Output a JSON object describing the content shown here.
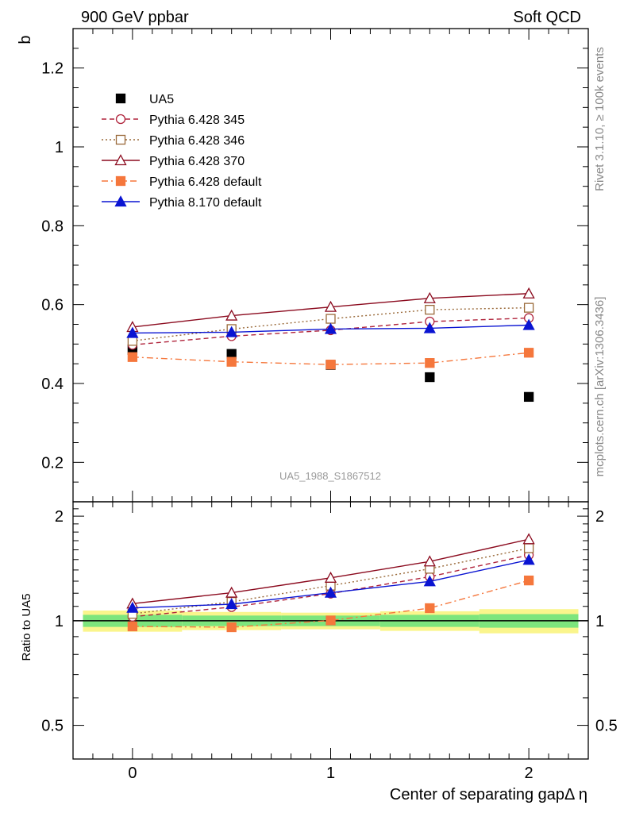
{
  "header": {
    "left": "900 GeV ppbar",
    "right": "Soft QCD"
  },
  "side_labels": {
    "rivet": "Rivet 3.1.10, ≥ 100k events",
    "mcplots": "mcplots.cern.ch [arXiv:1306.3436]"
  },
  "watermark": "UA5_1988_S1867512",
  "chart_data": [
    {
      "type": "scatter",
      "panel": "main",
      "ylabel": "b",
      "xlabel": "",
      "xlim": [
        -0.3,
        2.3
      ],
      "ylim": [
        0.1,
        1.3
      ],
      "x_ticks": [
        0,
        1,
        2
      ],
      "y_ticks": [
        0.2,
        0.4,
        0.6,
        0.8,
        1,
        1.2
      ],
      "y_tick_labels": [
        "0.2",
        "0.4",
        "0.6",
        "0.8",
        "1",
        "1.2"
      ],
      "legend_position": "top-left",
      "x": [
        0,
        0.5,
        1,
        1.5,
        2
      ],
      "series": [
        {
          "name": "UA5",
          "values": [
            0.485,
            0.475,
            0.447,
            0.416,
            0.366
          ],
          "color": "#000000",
          "marker": "filled-square",
          "line": "none"
        },
        {
          "name": "Pythia 6.428 345",
          "values": [
            0.498,
            0.52,
            0.535,
            0.557,
            0.566
          ],
          "color": "#b0243c",
          "marker": "open-circle",
          "line": "dashed"
        },
        {
          "name": "Pythia 6.428 346",
          "values": [
            0.508,
            0.538,
            0.564,
            0.587,
            0.592
          ],
          "color": "#9a6a3a",
          "marker": "open-square",
          "line": "dotted"
        },
        {
          "name": "Pythia 6.428 370",
          "values": [
            0.543,
            0.572,
            0.594,
            0.616,
            0.628
          ],
          "color": "#8b0a1e",
          "marker": "open-triangle",
          "line": "solid"
        },
        {
          "name": "Pythia 6.428 default",
          "values": [
            0.467,
            0.455,
            0.448,
            0.452,
            0.478
          ],
          "color": "#f5773c",
          "marker": "filled-square",
          "line": "dashdot"
        },
        {
          "name": "Pythia 8.170 default",
          "values": [
            0.528,
            0.53,
            0.538,
            0.54,
            0.548
          ],
          "color": "#0a14d2",
          "marker": "filled-triangle",
          "line": "solid"
        }
      ]
    },
    {
      "type": "line",
      "panel": "ratio",
      "ylabel": "Ratio to UA5",
      "xlabel": "Center of separating gapΔ η",
      "xlim": [
        -0.3,
        2.3
      ],
      "ylim": [
        0.4,
        2.2
      ],
      "log_y": true,
      "x_ticks": [
        0,
        1,
        2
      ],
      "x_tick_labels": [
        "0",
        "1",
        "2"
      ],
      "y_ticks": [
        0.5,
        1,
        2
      ],
      "y_tick_labels": [
        "0.5",
        "1",
        "2"
      ],
      "x": [
        0,
        0.5,
        1,
        1.5,
        2
      ],
      "bands": {
        "x_edges": [
          -0.25,
          0.25,
          0.75,
          1.25,
          1.75,
          2.25
        ],
        "inner": [
          [
            0.96,
            1.04
          ],
          [
            0.965,
            1.035
          ],
          [
            0.965,
            1.035
          ],
          [
            0.96,
            1.04
          ],
          [
            0.955,
            1.045
          ]
        ],
        "outer": [
          [
            0.93,
            1.07
          ],
          [
            0.94,
            1.06
          ],
          [
            0.945,
            1.055
          ],
          [
            0.935,
            1.065
          ],
          [
            0.92,
            1.08
          ]
        ],
        "inner_color": "#7de57d",
        "outer_color": "#faf58c"
      },
      "series": [
        {
          "name": "Pythia 6.428 345",
          "values": [
            1.027,
            1.095,
            1.197,
            1.339,
            1.546
          ],
          "color": "#b0243c",
          "marker": "open-circle",
          "line": "dashed"
        },
        {
          "name": "Pythia 6.428 346",
          "values": [
            1.047,
            1.133,
            1.262,
            1.411,
            1.617
          ],
          "color": "#9a6a3a",
          "marker": "open-square",
          "line": "dotted"
        },
        {
          "name": "Pythia 6.428 370",
          "values": [
            1.12,
            1.204,
            1.329,
            1.481,
            1.716
          ],
          "color": "#8b0a1e",
          "marker": "open-triangle",
          "line": "solid"
        },
        {
          "name": "Pythia 6.428 default",
          "values": [
            0.963,
            0.958,
            1.002,
            1.087,
            1.306
          ],
          "color": "#f5773c",
          "marker": "filled-square",
          "line": "dashdot"
        },
        {
          "name": "Pythia 8.170 default",
          "values": [
            1.089,
            1.116,
            1.204,
            1.298,
            1.497
          ],
          "color": "#0a14d2",
          "marker": "filled-triangle",
          "line": "solid"
        }
      ]
    }
  ]
}
